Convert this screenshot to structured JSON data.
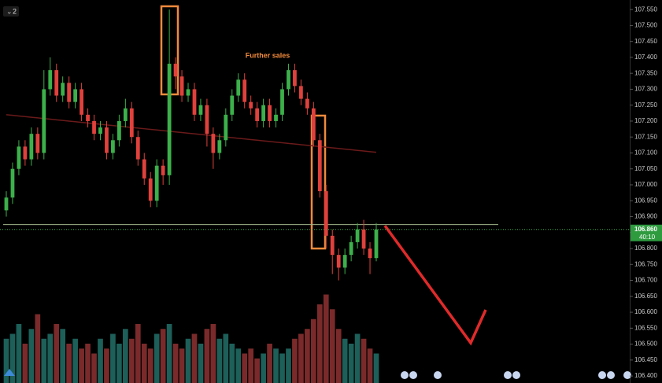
{
  "chart_data": {
    "type": "candlestick",
    "panel_label": "2",
    "annotation": "Further sales",
    "open": [
      106.92,
      106.96,
      107.05,
      107.12,
      107.08,
      107.16,
      107.1,
      107.3,
      107.36,
      107.28,
      107.32,
      107.26,
      107.3,
      107.22,
      107.2,
      107.16,
      107.18,
      107.1,
      107.14,
      107.2,
      107.24,
      107.15,
      107.08,
      107.02,
      106.95,
      107.06,
      107.03,
      107.38,
      107.34,
      107.28,
      107.3,
      107.22,
      107.25,
      107.16,
      107.1,
      107.14,
      107.22,
      107.28,
      107.33,
      107.26,
      107.24,
      107.2,
      107.25,
      107.2,
      107.22,
      107.3,
      107.36,
      107.31,
      107.27,
      107.24,
      107.14,
      106.98,
      106.84,
      106.78,
      106.74,
      106.78,
      106.82,
      106.86,
      106.8,
      106.77
    ],
    "high": [
      106.98,
      107.07,
      107.14,
      107.14,
      107.18,
      107.18,
      107.36,
      107.4,
      107.38,
      107.34,
      107.34,
      107.32,
      107.32,
      107.24,
      107.22,
      107.2,
      107.2,
      107.16,
      107.22,
      107.27,
      107.26,
      107.17,
      107.1,
      107.04,
      107.08,
      107.08,
      107.55,
      107.4,
      107.36,
      107.32,
      107.32,
      107.27,
      107.27,
      107.18,
      107.16,
      107.24,
      107.3,
      107.35,
      107.35,
      107.28,
      107.26,
      107.27,
      107.27,
      107.24,
      107.32,
      107.38,
      107.38,
      107.33,
      107.29,
      107.26,
      107.16,
      107.0,
      106.86,
      106.8,
      106.8,
      106.84,
      106.88,
      106.89,
      106.82,
      106.88
    ],
    "low": [
      106.9,
      106.94,
      107.03,
      107.06,
      107.06,
      107.08,
      107.08,
      107.28,
      107.26,
      107.26,
      107.24,
      107.24,
      107.2,
      107.18,
      107.14,
      107.14,
      107.08,
      107.08,
      107.12,
      107.18,
      107.13,
      107.06,
      107.0,
      106.93,
      106.93,
      107.0,
      107.0,
      107.3,
      107.26,
      107.26,
      107.2,
      107.2,
      107.12,
      107.05,
      107.08,
      107.12,
      107.2,
      107.26,
      107.24,
      107.22,
      107.18,
      107.18,
      107.18,
      107.18,
      107.2,
      107.28,
      107.29,
      107.25,
      107.22,
      107.12,
      106.96,
      106.8,
      106.72,
      106.7,
      106.72,
      106.76,
      106.8,
      106.78,
      106.72,
      106.76
    ],
    "close": [
      106.96,
      107.05,
      107.12,
      107.08,
      107.16,
      107.1,
      107.3,
      107.36,
      107.28,
      107.32,
      107.26,
      107.3,
      107.22,
      107.2,
      107.16,
      107.18,
      107.1,
      107.14,
      107.2,
      107.24,
      107.15,
      107.08,
      107.02,
      106.95,
      107.06,
      107.03,
      107.38,
      107.34,
      107.28,
      107.3,
      107.22,
      107.25,
      107.16,
      107.1,
      107.14,
      107.22,
      107.28,
      107.33,
      107.26,
      107.24,
      107.2,
      107.25,
      107.2,
      107.22,
      107.3,
      107.36,
      107.31,
      107.27,
      107.24,
      107.14,
      106.98,
      106.84,
      106.78,
      106.74,
      106.78,
      106.82,
      106.86,
      106.8,
      106.77,
      106.86
    ],
    "volume": [
      45,
      50,
      60,
      40,
      55,
      70,
      45,
      50,
      60,
      55,
      40,
      45,
      35,
      40,
      30,
      45,
      35,
      50,
      40,
      55,
      45,
      60,
      40,
      35,
      50,
      55,
      60,
      40,
      35,
      45,
      50,
      40,
      55,
      60,
      45,
      50,
      40,
      35,
      30,
      35,
      25,
      30,
      40,
      35,
      30,
      35,
      45,
      50,
      55,
      65,
      80,
      90,
      75,
      55,
      45,
      40,
      50,
      45,
      35,
      30
    ],
    "volume_lim": [
      0,
      100
    ],
    "ma": [
      107.22,
      107.218,
      107.216,
      107.214,
      107.212,
      107.21,
      107.208,
      107.206,
      107.204,
      107.202,
      107.2,
      107.198,
      107.196,
      107.194,
      107.192,
      107.19,
      107.188,
      107.186,
      107.184,
      107.182,
      107.18,
      107.178,
      107.176,
      107.174,
      107.172,
      107.17,
      107.168,
      107.166,
      107.164,
      107.162,
      107.16,
      107.158,
      107.156,
      107.154,
      107.152,
      107.15,
      107.148,
      107.146,
      107.144,
      107.142,
      107.14,
      107.138,
      107.136,
      107.134,
      107.132,
      107.13,
      107.128,
      107.126,
      107.124,
      107.122,
      107.12,
      107.118,
      107.116,
      107.114,
      107.112,
      107.11,
      107.108,
      107.106,
      107.104,
      107.102
    ],
    "level": 106.875,
    "last_price": {
      "value": 106.86,
      "label": "106.860"
    },
    "countdown": "40:10",
    "up_color": "#3cb04a",
    "down_color": "#e0413c",
    "ma_color": "#6b1a1a",
    "ylim": [
      106.378,
      107.58
    ],
    "yticks": [
      {
        "value": 107.55,
        "label": "107.550"
      },
      {
        "value": 107.5,
        "label": "107.500"
      },
      {
        "value": 107.45,
        "label": "107.450"
      },
      {
        "value": 107.4,
        "label": "107.400"
      },
      {
        "value": 107.35,
        "label": "107.350"
      },
      {
        "value": 107.3,
        "label": "107.300"
      },
      {
        "value": 107.25,
        "label": "107.250"
      },
      {
        "value": 107.2,
        "label": "107.200"
      },
      {
        "value": 107.15,
        "label": "107.150"
      },
      {
        "value": 107.1,
        "label": "107.100"
      },
      {
        "value": 107.05,
        "label": "107.050"
      },
      {
        "value": 107.0,
        "label": "107.000"
      },
      {
        "value": 106.95,
        "label": "106.950"
      },
      {
        "value": 106.9,
        "label": "106.900"
      },
      {
        "value": 106.85,
        "label": "106.850"
      },
      {
        "value": 106.8,
        "label": "106.800"
      },
      {
        "value": 106.75,
        "label": "106.750"
      },
      {
        "value": 106.7,
        "label": "106.700"
      },
      {
        "value": 106.65,
        "label": "106.650"
      },
      {
        "value": 106.6,
        "label": "106.600"
      },
      {
        "value": 106.55,
        "label": "106.550"
      },
      {
        "value": 106.5,
        "label": "106.500"
      },
      {
        "value": 106.45,
        "label": "106.450"
      },
      {
        "value": 106.4,
        "label": "106.400"
      }
    ]
  }
}
